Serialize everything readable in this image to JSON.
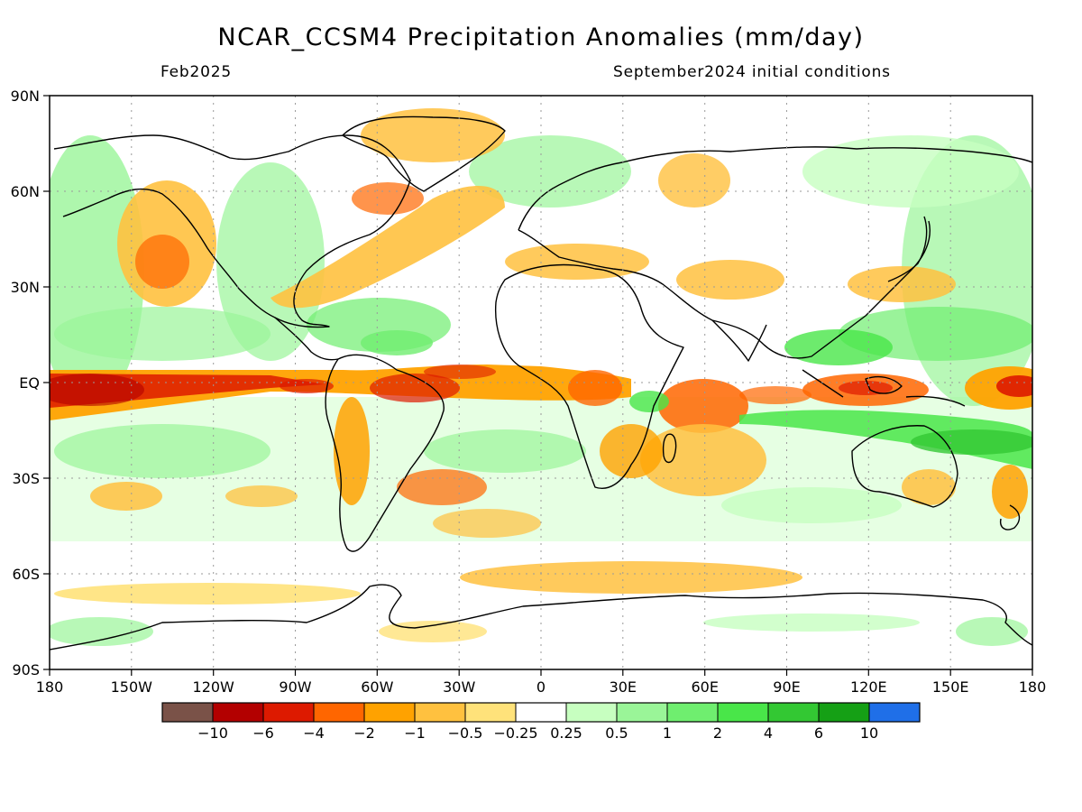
{
  "title": "NCAR_CCSM4 Precipitation Anomalies (mm/day)",
  "valid_month": "Feb2025",
  "init_label": "September2024 initial conditions",
  "lat_ticks": [
    "90N",
    "60N",
    "30N",
    "EQ",
    "30S",
    "60S",
    "90S"
  ],
  "lon_ticks": [
    "180",
    "150W",
    "120W",
    "90W",
    "60W",
    "30W",
    "0",
    "30E",
    "60E",
    "90E",
    "120E",
    "150E",
    "180"
  ],
  "colorbar": {
    "colors": [
      "#7a5248",
      "#b30000",
      "#dd1a00",
      "#ff6600",
      "#ffa200",
      "#ffc13f",
      "#ffe27a",
      "#ffffff",
      "#c7ffc0",
      "#9af598",
      "#6fee6f",
      "#49e649",
      "#33c833",
      "#15a015",
      "#1f6fe8"
    ],
    "labels": [
      "−10",
      "−6",
      "−4",
      "−2",
      "−1",
      "−0.5",
      "−0.25",
      "0.25",
      "0.5",
      "1",
      "2",
      "4",
      "6",
      "10"
    ]
  },
  "colors": {
    "grid": "#9a9a9a",
    "coast": "#000000"
  }
}
